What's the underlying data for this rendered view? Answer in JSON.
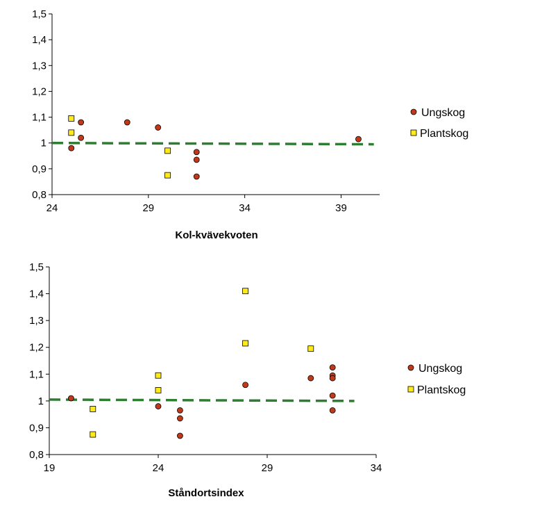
{
  "colors": {
    "ungskog": "#c0391b",
    "plantskog": "#ffeb1a",
    "refline": "#2e7d32",
    "axis": "#000000"
  },
  "chart_data": [
    {
      "type": "scatter",
      "title": "",
      "xlabel": "Kol-kvävekvoten",
      "ylabel": "",
      "xlim": [
        24,
        41
      ],
      "ylim": [
        0.8,
        1.5
      ],
      "xticks": [
        24,
        29,
        34,
        39
      ],
      "xtick_labels": [
        "24",
        "29",
        "34",
        "39"
      ],
      "yticks": [
        0.8,
        0.9,
        1.0,
        1.1,
        1.2,
        1.3,
        1.4,
        1.5
      ],
      "ytick_labels": [
        "0,8",
        "0,9",
        "1",
        "1,1",
        "1,2",
        "1,3",
        "1,4",
        "1,5"
      ],
      "legend_position": "right",
      "reference_line": {
        "x": [
          24,
          40.7
        ],
        "y": [
          1.0,
          0.995
        ],
        "style": "dashed"
      },
      "series": [
        {
          "name": "Ungskog",
          "marker": "circle",
          "points": [
            [
              25.0,
              0.98
            ],
            [
              25.5,
              1.02
            ],
            [
              25.5,
              1.08
            ],
            [
              27.9,
              1.08
            ],
            [
              29.5,
              1.06
            ],
            [
              31.5,
              0.965
            ],
            [
              31.5,
              0.935
            ],
            [
              31.5,
              0.87
            ],
            [
              39.9,
              1.015
            ]
          ]
        },
        {
          "name": "Plantskog",
          "marker": "square",
          "points": [
            [
              25.0,
              1.095
            ],
            [
              25.0,
              1.04
            ],
            [
              30.0,
              0.97
            ],
            [
              30.0,
              0.875
            ]
          ]
        }
      ]
    },
    {
      "type": "scatter",
      "title": "",
      "xlabel": "Ståndortsindex",
      "ylabel": "",
      "xlim": [
        19,
        34
      ],
      "ylim": [
        0.8,
        1.5
      ],
      "xticks": [
        19,
        24,
        29,
        34
      ],
      "xtick_labels": [
        "19",
        "24",
        "29",
        "34"
      ],
      "yticks": [
        0.8,
        0.9,
        1.0,
        1.1,
        1.2,
        1.3,
        1.4,
        1.5
      ],
      "ytick_labels": [
        "0,8",
        "0,9",
        "1",
        "1,1",
        "1,2",
        "1,3",
        "1,4",
        "1,5"
      ],
      "legend_position": "right",
      "reference_line": {
        "x": [
          19,
          33.0
        ],
        "y": [
          1.005,
          1.0
        ],
        "style": "dashed"
      },
      "series": [
        {
          "name": "Ungskog",
          "marker": "circle",
          "points": [
            [
              20.0,
              1.01
            ],
            [
              24.0,
              0.98
            ],
            [
              25.0,
              0.965
            ],
            [
              25.0,
              0.935
            ],
            [
              25.0,
              0.87
            ],
            [
              28.0,
              1.06
            ],
            [
              31.0,
              1.085
            ],
            [
              32.0,
              1.125
            ],
            [
              32.0,
              1.095
            ],
            [
              32.0,
              1.085
            ],
            [
              32.0,
              1.02
            ],
            [
              32.0,
              0.965
            ]
          ]
        },
        {
          "name": "Plantskog",
          "marker": "square",
          "points": [
            [
              21.0,
              0.97
            ],
            [
              21.0,
              0.875
            ],
            [
              24.0,
              1.095
            ],
            [
              24.0,
              1.04
            ],
            [
              28.0,
              1.41
            ],
            [
              28.0,
              1.215
            ],
            [
              31.0,
              1.195
            ]
          ]
        }
      ]
    }
  ]
}
